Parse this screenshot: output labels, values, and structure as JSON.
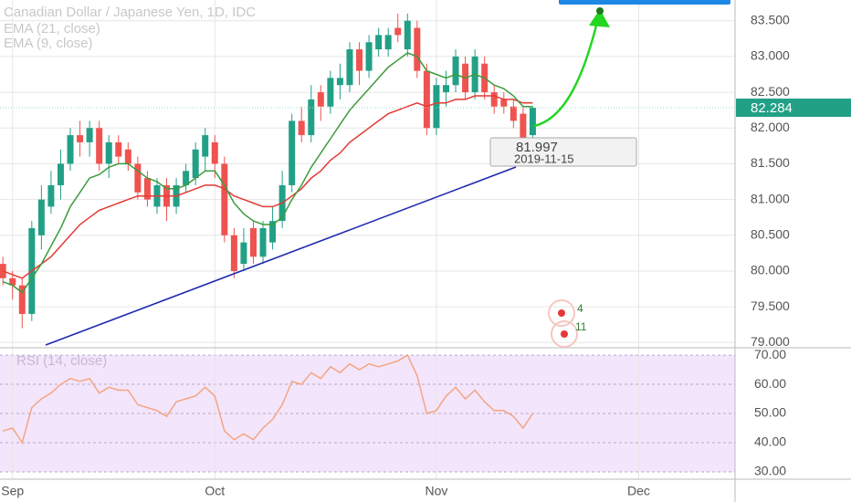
{
  "chart_data": {
    "type": "candlestick",
    "title": "Canadian Dollar / Japanese Yen, 1D, IDC",
    "x": [
      0,
      1,
      2,
      3,
      4,
      5,
      6,
      7,
      8,
      9,
      10,
      11,
      12,
      13,
      14,
      15,
      16,
      17,
      18,
      19,
      20,
      21,
      22,
      23,
      24,
      25,
      26,
      27,
      28,
      29,
      30,
      31,
      32,
      33,
      34,
      35,
      36,
      37,
      38,
      39,
      40,
      41,
      42,
      43,
      44,
      45,
      46,
      47,
      48,
      49,
      50,
      51,
      52,
      53,
      54,
      55
    ],
    "open": [
      80.1,
      79.9,
      79.8,
      79.4,
      80.5,
      80.9,
      81.2,
      81.5,
      81.9,
      81.8,
      82.0,
      81.5,
      81.8,
      81.7,
      81.5,
      81.3,
      80.9,
      81.2,
      80.9,
      81.2,
      81.3,
      81.6,
      81.8,
      81.5,
      80.5,
      80.1,
      80.6,
      80.2,
      80.4,
      80.7,
      81.2,
      82.1,
      81.9,
      82.5,
      82.3,
      82.6,
      82.6,
      83.1,
      82.8,
      83.1,
      83.1,
      83.4,
      83.1,
      83.4,
      82.8,
      82.0,
      82.5,
      82.6,
      82.9,
      82.5,
      82.9,
      82.5,
      82.4,
      82.3,
      82.2,
      81.9
    ],
    "high": [
      80.2,
      80.0,
      79.9,
      80.7,
      81.2,
      81.4,
      81.7,
      82.0,
      82.1,
      82.1,
      82.1,
      81.9,
      81.9,
      81.8,
      81.6,
      81.4,
      81.3,
      81.3,
      81.3,
      81.5,
      81.8,
      82.0,
      81.9,
      81.6,
      80.6,
      80.6,
      80.7,
      80.7,
      80.9,
      81.4,
      82.2,
      82.3,
      82.6,
      82.6,
      82.8,
      82.9,
      83.2,
      83.2,
      83.3,
      83.4,
      83.4,
      83.6,
      83.6,
      83.5,
      82.9,
      82.7,
      82.8,
      83.1,
      83.0,
      83.1,
      83.0,
      82.6,
      82.5,
      82.4,
      82.3,
      82.3
    ],
    "low": [
      79.8,
      79.6,
      79.2,
      79.3,
      80.3,
      80.8,
      81.0,
      81.4,
      81.6,
      81.6,
      81.4,
      81.3,
      81.5,
      81.4,
      81.0,
      80.9,
      80.8,
      80.7,
      80.8,
      81.1,
      81.2,
      81.4,
      81.3,
      80.4,
      79.9,
      80.0,
      80.1,
      80.1,
      80.3,
      80.6,
      81.1,
      81.8,
      81.8,
      82.1,
      82.2,
      82.4,
      82.5,
      82.6,
      82.7,
      83.0,
      83.0,
      83.2,
      83.0,
      82.7,
      81.9,
      81.9,
      82.3,
      82.5,
      82.4,
      82.4,
      82.4,
      82.2,
      82.2,
      82.0,
      81.7,
      81.8
    ],
    "close": [
      79.9,
      79.8,
      79.4,
      80.6,
      81.0,
      81.2,
      81.5,
      81.9,
      81.8,
      82.0,
      81.5,
      81.8,
      81.6,
      81.5,
      81.1,
      81.0,
      81.2,
      80.9,
      81.2,
      81.4,
      81.7,
      81.9,
      81.5,
      80.5,
      80.0,
      80.4,
      80.2,
      80.6,
      80.7,
      81.2,
      82.1,
      81.9,
      82.4,
      82.3,
      82.7,
      82.7,
      83.1,
      82.8,
      83.2,
      83.3,
      83.3,
      83.3,
      83.5,
      82.8,
      82.0,
      82.6,
      82.6,
      83.0,
      82.5,
      83.0,
      82.5,
      82.3,
      82.3,
      82.1,
      81.8,
      82.284
    ],
    "up_color": "#22a086",
    "down_color": "#ef5350",
    "series": [
      {
        "name": "EMA (21, close)",
        "color": "#e53935",
        "values": [
          80.0,
          79.95,
          79.9,
          80.0,
          80.1,
          80.2,
          80.35,
          80.5,
          80.65,
          80.75,
          80.85,
          80.9,
          80.95,
          81.0,
          81.05,
          81.05,
          81.05,
          81.05,
          81.05,
          81.1,
          81.15,
          81.2,
          81.2,
          81.15,
          81.05,
          81.0,
          80.95,
          80.9,
          80.9,
          80.95,
          81.05,
          81.15,
          81.3,
          81.4,
          81.55,
          81.65,
          81.8,
          81.9,
          82.0,
          82.1,
          82.2,
          82.25,
          82.3,
          82.35,
          82.3,
          82.35,
          82.35,
          82.4,
          82.4,
          82.45,
          82.45,
          82.45,
          82.4,
          82.4,
          82.35,
          82.35
        ]
      },
      {
        "name": "EMA (9, close)",
        "color": "#3d9b3d",
        "values": [
          79.85,
          79.8,
          79.7,
          79.9,
          80.1,
          80.35,
          80.6,
          80.9,
          81.1,
          81.3,
          81.35,
          81.45,
          81.5,
          81.5,
          81.4,
          81.3,
          81.25,
          81.15,
          81.15,
          81.2,
          81.3,
          81.4,
          81.4,
          81.2,
          80.95,
          80.8,
          80.7,
          80.65,
          80.65,
          80.75,
          81.0,
          81.2,
          81.45,
          81.65,
          81.85,
          82.05,
          82.25,
          82.4,
          82.55,
          82.7,
          82.85,
          82.95,
          83.05,
          83.0,
          82.8,
          82.75,
          82.7,
          82.75,
          82.7,
          82.75,
          82.7,
          82.6,
          82.55,
          82.45,
          82.3,
          82.3
        ]
      }
    ],
    "xlim": [
      -0.3,
      76
    ],
    "xticks": [
      {
        "value": 1,
        "label": "Sep"
      },
      {
        "value": 22,
        "label": "Oct"
      },
      {
        "value": 45,
        "label": "Nov"
      },
      {
        "value": 66,
        "label": "Dec"
      }
    ],
    "ylim": [
      78.94,
      83.79
    ],
    "yticks": [
      {
        "value": 79,
        "label": "79.000"
      },
      {
        "value": 79.5,
        "label": "79.500"
      },
      {
        "value": 80,
        "label": "80.000"
      },
      {
        "value": 80.5,
        "label": "80.500"
      },
      {
        "value": 81,
        "label": "81.000"
      },
      {
        "value": 81.5,
        "label": "81.500"
      },
      {
        "value": 82,
        "label": "82.000"
      },
      {
        "value": 82.5,
        "label": "82.500"
      },
      {
        "value": 83,
        "label": "83.000"
      },
      {
        "value": 83.5,
        "label": "83.500"
      }
    ],
    "grid": true,
    "last_price": 82.284,
    "annotation": {
      "value": 81.997,
      "date": "2019-11-15"
    },
    "events": [
      4,
      11
    ],
    "rsi": {
      "name": "RSI (14, close)",
      "color": "#f4a582",
      "values": [
        44,
        45,
        40,
        52,
        55,
        57,
        60,
        62,
        61,
        62,
        57,
        59,
        58,
        58,
        53,
        52,
        51,
        49,
        54,
        55,
        56,
        59,
        56,
        44,
        41,
        43,
        41,
        45,
        48,
        53,
        61,
        60,
        64,
        62,
        66,
        64,
        67,
        65,
        67,
        66,
        67,
        68,
        70,
        63,
        50,
        51,
        56,
        59,
        55,
        58,
        54,
        51,
        51,
        49,
        45,
        50
      ],
      "ylim": [
        27.5,
        71.9
      ],
      "yticks": [
        {
          "value": 30,
          "label": "30.00"
        },
        {
          "value": 40,
          "label": "40.00"
        },
        {
          "value": 50,
          "label": "50.00"
        },
        {
          "value": 60,
          "label": "60.00"
        },
        {
          "value": 70,
          "label": "70.00"
        }
      ]
    }
  }
}
